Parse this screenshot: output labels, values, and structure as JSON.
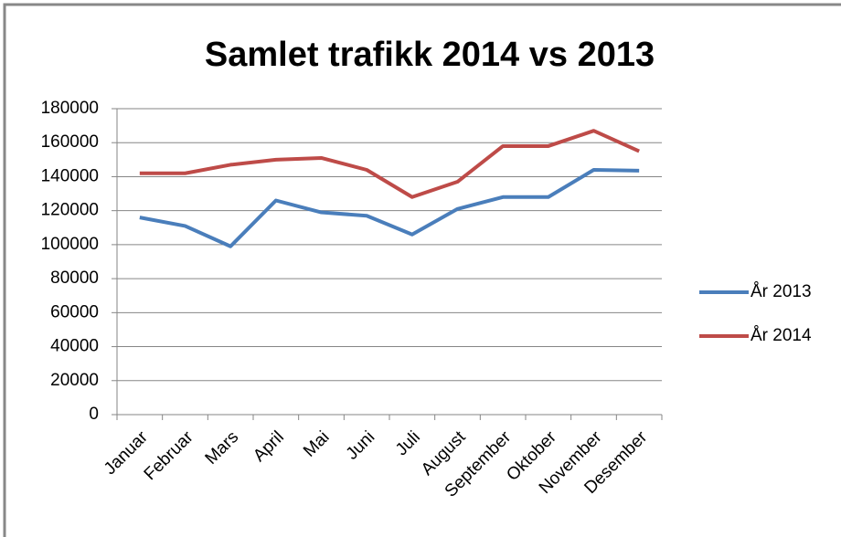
{
  "chart_data": {
    "type": "line",
    "title": "Samlet trafikk 2014 vs 2013",
    "categories": [
      "Januar",
      "Februar",
      "Mars",
      "April",
      "Mai",
      "Juni",
      "Juli",
      "August",
      "September",
      "Oktober",
      "November",
      "Desember"
    ],
    "series": [
      {
        "name": "År 2013",
        "color": "#4a7ebb",
        "values": [
          116000,
          111000,
          99000,
          126000,
          119000,
          117000,
          106000,
          121000,
          128000,
          128000,
          144000,
          143500
        ]
      },
      {
        "name": "År 2014",
        "color": "#be4b48",
        "values": [
          142000,
          142000,
          147000,
          150000,
          151000,
          144000,
          128000,
          137000,
          158000,
          158000,
          167000,
          155000
        ]
      }
    ],
    "ylim": [
      0,
      180000
    ],
    "yticks": [
      0,
      20000,
      40000,
      60000,
      80000,
      100000,
      120000,
      140000,
      160000,
      180000
    ],
    "grid": true,
    "legend": "right"
  }
}
